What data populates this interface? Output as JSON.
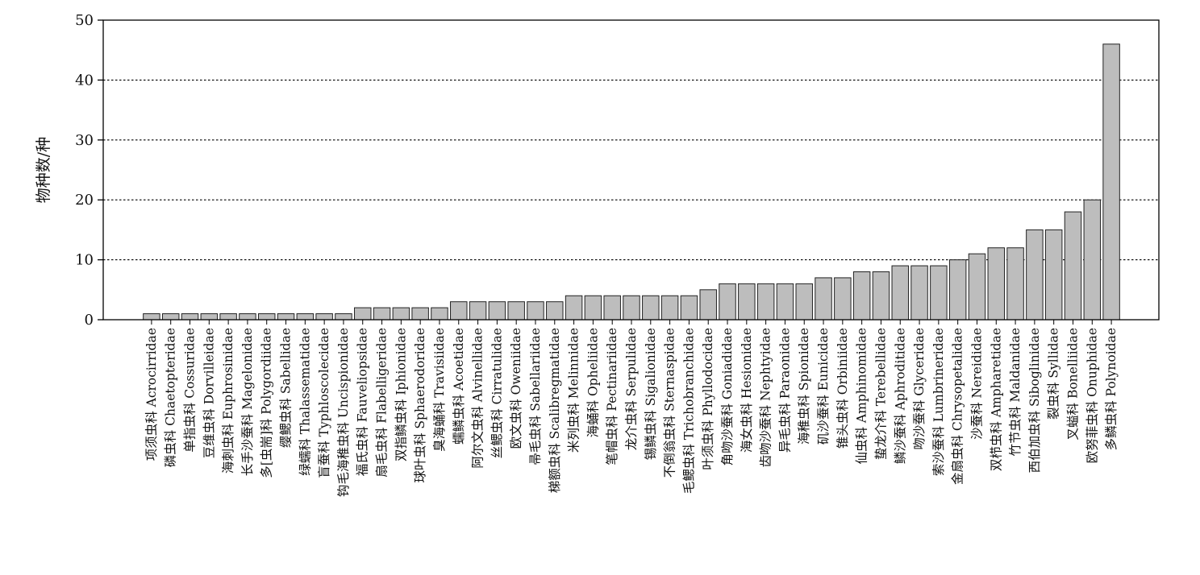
{
  "chart_data": {
    "type": "bar",
    "title": "",
    "xlabel": "",
    "ylabel": "物种数/种",
    "ylim": [
      0,
      50
    ],
    "yticks": [
      0,
      10,
      20,
      30,
      40,
      50
    ],
    "grid": "horizontal dotted",
    "colors": {
      "bar_fill": "#bdbdbd",
      "bar_stroke": "#222222",
      "axis": "#000000",
      "grid": "#000000"
    },
    "categories": [
      "项须虫科 Acrocirridae",
      "磷虫科 Chaetopteridae",
      "单指虫科 Cossuridae",
      "豆维虫科 Dorvilleidae",
      "海刺虫科 Euphrosinidae",
      "长手沙蚕科 Magelonidae",
      "多[虫耑]科 Polygordiidae",
      "缨鳃虫科 Sabellidae",
      "绿蠕科 Thalassematidae",
      "盲蚕科 Typhloscolecidae",
      "钩毛海稚虫科 Uncispionidae",
      "福氏虫科 Fauveliopsidae",
      "扇毛虫科 Flabelligeridae",
      "双指鳞虫科 Iphionidae",
      "球叶虫科 Sphaerodoridae",
      "臭海蛹科 Travisiidae",
      "蠕鳞虫科 Acoetidae",
      "阿尔文虫科 Alvinellidae",
      "丝鳃虫科 Cirratulidae",
      "欧文虫科 Oweniidae",
      "帚毛虫科 Sabellariidae",
      "梯额虫科 Scalibregmatidae",
      "米列虫科 Melinnidae",
      "海蛹科 Opheliidae",
      "笔帽虫科 Pectinariidae",
      "龙介虫科 Serpulidae",
      "锡鳞虫科 Sigalionidae",
      "不倒翁虫科 Sternaspidae",
      "毛鳃虫科 Trichobranchidae",
      "叶须虫科 Phyllodocidae",
      "角吻沙蚕科 Goniadidae",
      "海女虫科 Hesionidae",
      "齿吻沙蚕科 Nephtyidae",
      "异毛虫科 Paraonidae",
      "海稚虫科 Spionidae",
      "矶沙蚕科 Eunicidae",
      "锥头虫科 Orbiniidae",
      "仙虫科 Amphinomidae",
      "蛰龙介科 Terebellidae",
      "鳞沙蚕科 Aphroditidae",
      "吻沙蚕科 Glyceridae",
      "索沙蚕科 Lumbrineridae",
      "金扇虫科 Chrysopetalidae",
      "沙蚕科 Nereididae",
      "双栉虫科 Ampharetidae",
      "竹节虫科 Maldanidae",
      "西伯加虫科 Siboglinidae",
      "裂虫科 Syllidae",
      "叉螠科 Bonelliidae",
      "欧努菲虫科 Onuphidae",
      "多鳞虫科 Polynoidae"
    ],
    "values": [
      1,
      1,
      1,
      1,
      1,
      1,
      1,
      1,
      1,
      1,
      1,
      2,
      2,
      2,
      2,
      2,
      3,
      3,
      3,
      3,
      3,
      3,
      4,
      4,
      4,
      4,
      4,
      4,
      4,
      5,
      6,
      6,
      6,
      6,
      6,
      7,
      7,
      8,
      8,
      9,
      9,
      9,
      10,
      11,
      12,
      12,
      15,
      15,
      18,
      20,
      46
    ]
  }
}
